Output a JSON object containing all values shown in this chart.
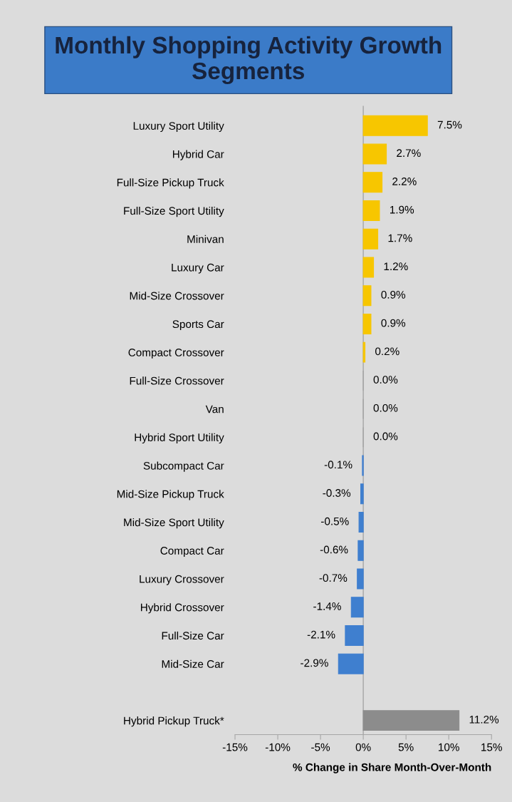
{
  "chart_data": {
    "type": "bar",
    "orientation": "horizontal",
    "title": "Monthly Shopping Activity Growth Segments",
    "xlabel": "% Change in Share Month-Over-Month",
    "categories": [
      "Luxury Sport Utility",
      "Hybrid Car",
      "Full-Size Pickup Truck",
      "Full-Size Sport Utility",
      "Minivan",
      "Luxury Car",
      "Mid-Size Crossover",
      "Sports Car",
      "Compact Crossover",
      "Full-Size Crossover",
      "Van",
      "Hybrid Sport Utility",
      "Subcompact Car",
      "Mid-Size Pickup Truck",
      "Mid-Size Sport Utility",
      "Compact Car",
      "Luxury Crossover",
      "Hybrid Crossover",
      "Full-Size Car",
      "Mid-Size Car",
      null,
      "Hybrid Pickup Truck*"
    ],
    "values": [
      7.5,
      2.7,
      2.2,
      1.9,
      1.7,
      1.2,
      0.9,
      0.9,
      0.2,
      0.0,
      0.0,
      0.0,
      -0.1,
      -0.3,
      -0.5,
      -0.6,
      -0.7,
      -1.4,
      -2.1,
      -2.9,
      null,
      11.2
    ],
    "value_labels": [
      "7.5%",
      "2.7%",
      "2.2%",
      "1.9%",
      "1.7%",
      "1.2%",
      "0.9%",
      "0.9%",
      "0.2%",
      "0.0%",
      "0.0%",
      "0.0%",
      "-0.1%",
      "-0.3%",
      "-0.5%",
      "-0.6%",
      "-0.7%",
      "-1.4%",
      "-2.1%",
      "-2.9%",
      null,
      "11.2%"
    ],
    "colors": [
      "#f7c600",
      "#f7c600",
      "#f7c600",
      "#f7c600",
      "#f7c600",
      "#f7c600",
      "#f7c600",
      "#f7c600",
      "#f7c600",
      "#a0a0a0",
      "#a0a0a0",
      "#a0a0a0",
      "#3f7fcf",
      "#3f7fcf",
      "#3f7fcf",
      "#3f7fcf",
      "#3f7fcf",
      "#3f7fcf",
      "#3f7fcf",
      "#3f7fcf",
      null,
      "#8c8c8c"
    ],
    "xlim": [
      -15,
      15
    ],
    "xticks": [
      {
        "value": -15,
        "label": "-15%"
      },
      {
        "value": -10,
        "label": "-10%"
      },
      {
        "value": -5,
        "label": "-5%"
      },
      {
        "value": 0,
        "label": "0%"
      },
      {
        "value": 5,
        "label": "5%"
      },
      {
        "value": 10,
        "label": "10%"
      },
      {
        "value": 15,
        "label": "15%"
      }
    ],
    "ref_lines": [
      {
        "axis": "x",
        "value": 0,
        "color": "#a6a6a6"
      }
    ],
    "grid": false,
    "legend": false
  }
}
